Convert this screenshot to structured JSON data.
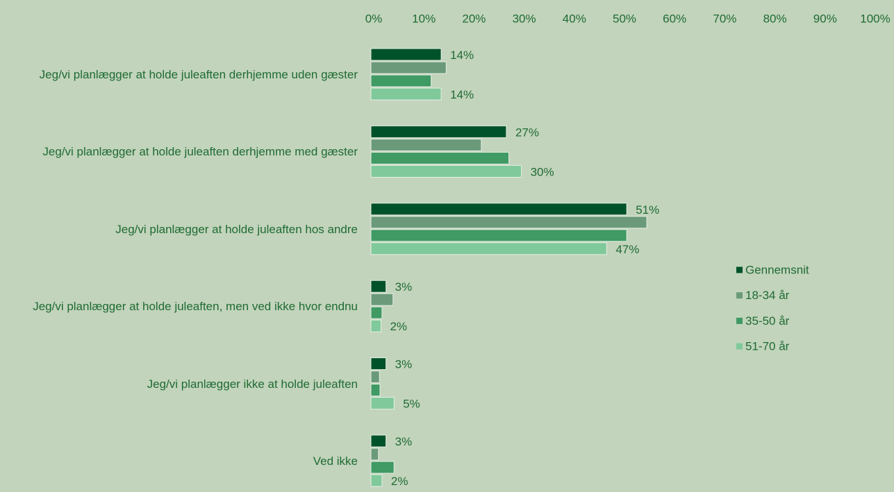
{
  "chart_data": {
    "type": "hbar",
    "categories": [
      "Jeg/vi planlægger at holde juleaften derhjemme uden gæster",
      "Jeg/vi planlægger at holde juleaften derhjemme med gæster",
      "Jeg/vi planlægger at holde juleaften hos andre",
      "Jeg/vi planlægger at holde juleaften, men ved ikke hvor endnu",
      "Jeg/vi planlægger ikke at holde juleaften",
      "Ved ikke"
    ],
    "series": [
      {
        "name": "Gennemsnit",
        "color": "#00522a",
        "values": [
          14,
          27,
          51,
          3,
          3,
          3
        ],
        "value_labels": [
          "14%",
          "27%",
          "51%",
          "3%",
          "3%",
          "3%"
        ]
      },
      {
        "name": "18-34 år",
        "color": "#6b9a7a",
        "values": [
          15,
          22,
          55,
          4.4,
          1.7,
          1.5
        ]
      },
      {
        "name": "35-50 år",
        "color": "#3f9a63",
        "values": [
          12,
          27.5,
          51,
          2.2,
          1.8,
          4.6
        ]
      },
      {
        "name": "51-70 år",
        "color": "#7fc99a",
        "values": [
          14,
          30,
          47,
          2,
          4.6,
          2.2
        ],
        "value_labels": [
          "14%",
          "30%",
          "47%",
          "2%",
          "5%",
          "2%"
        ]
      }
    ],
    "xlim": [
      0,
      100
    ],
    "xticks": [
      {
        "value": 0,
        "label": "0%"
      },
      {
        "value": 10,
        "label": "10%"
      },
      {
        "value": 20,
        "label": "20%"
      },
      {
        "value": 30,
        "label": "30%"
      },
      {
        "value": 40,
        "label": "40%"
      },
      {
        "value": 50,
        "label": "50%"
      },
      {
        "value": 60,
        "label": "60%"
      },
      {
        "value": 70,
        "label": "70%"
      },
      {
        "value": 80,
        "label": "80%"
      },
      {
        "value": 90,
        "label": "90%"
      },
      {
        "value": 100,
        "label": "100%"
      }
    ],
    "legend": "right"
  }
}
